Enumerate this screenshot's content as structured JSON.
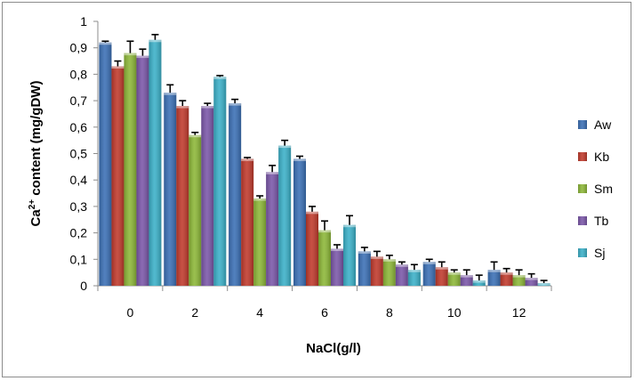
{
  "chart_data": {
    "type": "bar",
    "xlabel": "NaCl(g/l)",
    "ylabel_main": "Ca",
    "ylabel_sup": "2+",
    "ylabel_rest": " content (mg/gDW)",
    "ylim": [
      0,
      1
    ],
    "yticks": [
      "0",
      "0,1",
      "0,2",
      "0,3",
      "0,4",
      "0,5",
      "0,6",
      "0,7",
      "0,8",
      "0,9",
      "1"
    ],
    "categories": [
      "0",
      "2",
      "4",
      "6",
      "8",
      "10",
      "12"
    ],
    "legend_position": "right",
    "grid": false,
    "error_bars": true,
    "series": [
      {
        "name": "Aw",
        "color": "#3a6fb5",
        "values": [
          0.92,
          0.73,
          0.69,
          0.48,
          0.13,
          0.09,
          0.06
        ],
        "errors": [
          0.005,
          0.03,
          0.015,
          0.01,
          0.015,
          0.01,
          0.03
        ]
      },
      {
        "name": "Kb",
        "color": "#c0392b",
        "values": [
          0.83,
          0.68,
          0.48,
          0.28,
          0.11,
          0.07,
          0.05
        ],
        "errors": [
          0.02,
          0.02,
          0.005,
          0.02,
          0.02,
          0.02,
          0.015
        ]
      },
      {
        "name": "Sm",
        "color": "#8cb737",
        "values": [
          0.88,
          0.57,
          0.33,
          0.21,
          0.1,
          0.05,
          0.04
        ],
        "errors": [
          0.045,
          0.01,
          0.01,
          0.035,
          0.015,
          0.01,
          0.02
        ]
      },
      {
        "name": "Tb",
        "color": "#7a56a8",
        "values": [
          0.87,
          0.68,
          0.43,
          0.14,
          0.08,
          0.04,
          0.03
        ],
        "errors": [
          0.025,
          0.01,
          0.025,
          0.015,
          0.01,
          0.02,
          0.015
        ]
      },
      {
        "name": "Sj",
        "color": "#3ab0c8",
        "values": [
          0.93,
          0.79,
          0.53,
          0.23,
          0.06,
          0.02,
          0.01
        ],
        "errors": [
          0.02,
          0.005,
          0.02,
          0.035,
          0.02,
          0.02,
          0.01
        ]
      }
    ]
  }
}
